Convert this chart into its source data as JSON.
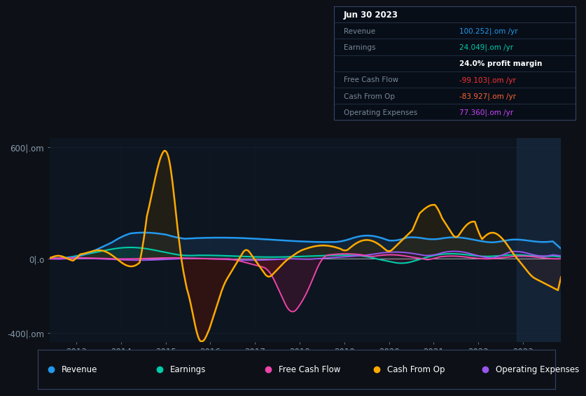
{
  "bg_color": "#0d1117",
  "plot_bg_color": "#0d1520",
  "grid_color": "#1a2535",
  "ylim": [
    -450,
    650
  ],
  "line_colors": {
    "revenue": "#2299ee",
    "earnings": "#00ccaa",
    "free_cash_flow": "#ee44aa",
    "cash_from_op": "#ffaa00",
    "op_expenses": "#9955ee"
  },
  "fill_colors": {
    "revenue": "#1a3a5c",
    "earnings": "#0a4a3a",
    "fcf_neg": "#5c1535",
    "cop_pos": "#3a2a08",
    "cop_neg": "#4a1208",
    "opex": "#251540"
  },
  "legend": [
    {
      "label": "Revenue",
      "color": "#2299ee"
    },
    {
      "label": "Earnings",
      "color": "#00ccaa"
    },
    {
      "label": "Free Cash Flow",
      "color": "#ee44aa"
    },
    {
      "label": "Cash From Op",
      "color": "#ffaa00"
    },
    {
      "label": "Operating Expenses",
      "color": "#9955ee"
    }
  ],
  "info_title": "Jun 30 2023",
  "info_rows": [
    {
      "label": "Revenue",
      "value": "100.252|.om /yr",
      "vcolor": "#2299ee",
      "lcolor": "#778899"
    },
    {
      "label": "Earnings",
      "value": "24.049|.om /yr",
      "vcolor": "#00ccaa",
      "lcolor": "#778899"
    },
    {
      "label": "",
      "value": "24.0% profit margin",
      "vcolor": "#ffffff",
      "lcolor": ""
    },
    {
      "label": "Free Cash Flow",
      "value": "-99.103|.om /yr",
      "vcolor": "#ff3333",
      "lcolor": "#778899"
    },
    {
      "label": "Cash From Op",
      "value": "-83.927|.om /yr",
      "vcolor": "#ff6633",
      "lcolor": "#778899"
    },
    {
      "label": "Operating Expenses",
      "value": "77.360|.om /yr",
      "vcolor": "#cc44ff",
      "lcolor": "#778899"
    }
  ],
  "vbar_color": "#1a2d44",
  "zero_line_color": "#ffffff",
  "xticks": [
    2013,
    2014,
    2015,
    2016,
    2017,
    2018,
    2019,
    2020,
    2021,
    2022,
    2023
  ],
  "ytick_vals": [
    -400,
    0,
    600
  ],
  "ytick_labels": [
    "-400|.om",
    "0|.o",
    "600|.om"
  ]
}
